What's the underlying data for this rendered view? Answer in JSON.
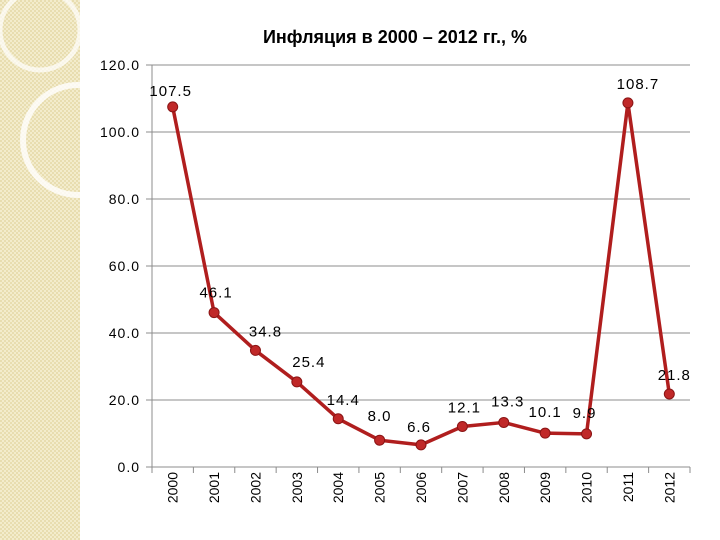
{
  "chart_data": {
    "type": "line",
    "title": "Инфляция в 2000 – 2012 гг., %",
    "xlabel": "",
    "ylabel": "",
    "categories": [
      "2000",
      "2001",
      "2002",
      "2003",
      "2004",
      "2005",
      "2006",
      "2007",
      "2008",
      "2009",
      "2010",
      "2011",
      "2012"
    ],
    "values": [
      107.5,
      46.1,
      34.8,
      25.4,
      14.4,
      8.0,
      6.6,
      12.1,
      13.3,
      10.1,
      9.9,
      108.7,
      21.8
    ],
    "data_labels": [
      "107.5",
      "46.1",
      "34.8",
      "25.4",
      "14.4",
      "8.0",
      "6.6",
      "12.1",
      "13.3",
      "10.1",
      "9.9",
      "108.7",
      "21.8"
    ],
    "ylim": [
      0,
      120
    ],
    "yticks": [
      0,
      20,
      40,
      60,
      80,
      100,
      120
    ],
    "ytick_labels": [
      "0.0",
      "20.0",
      "40.0",
      "60.0",
      "80.0",
      "100.0",
      "120.0"
    ],
    "grid": true,
    "legend": "none",
    "line_color": "#b01e1e",
    "marker_color": "#c02828"
  }
}
